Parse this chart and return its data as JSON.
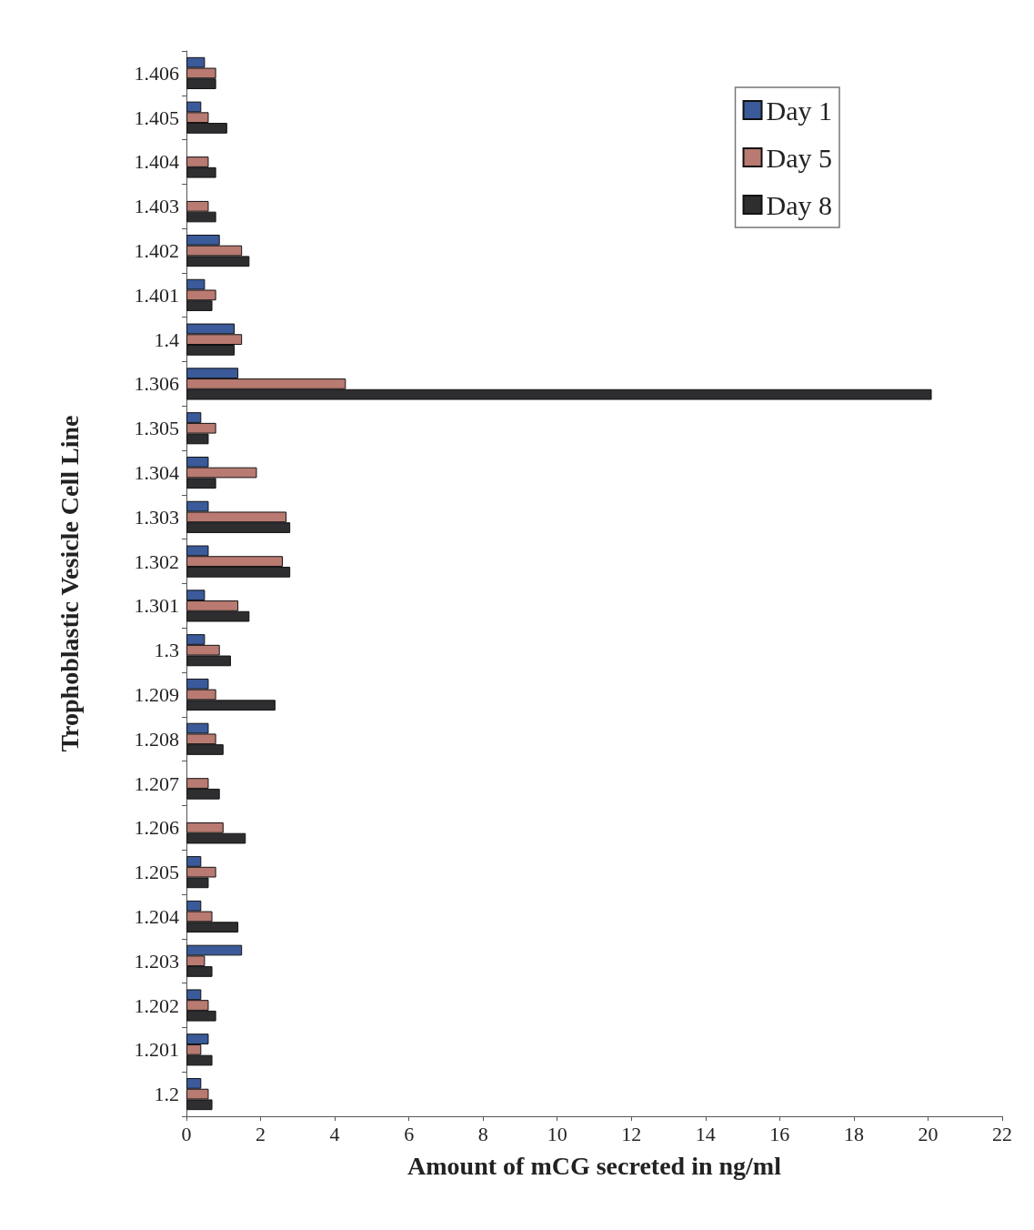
{
  "chart_data": {
    "type": "bar",
    "orientation": "horizontal",
    "xlabel": "Amount of mCG secreted in ng/ml",
    "ylabel": "Trophoblastic Vesicle Cell Line",
    "categories": [
      "1.406",
      "1.405",
      "1.404",
      "1.403",
      "1.402",
      "1.401",
      "1.4",
      "1.306",
      "1.305",
      "1.304",
      "1.303",
      "1.302",
      "1.301",
      "1.3",
      "1.209",
      "1.208",
      "1.207",
      "1.206",
      "1.205",
      "1.204",
      "1.203",
      "1.202",
      "1.201",
      "1.2"
    ],
    "series": [
      {
        "name": "Day 1",
        "color": "#3a5a9a",
        "values": [
          0.5,
          0.4,
          null,
          null,
          0.9,
          0.5,
          1.3,
          1.4,
          0.4,
          0.6,
          0.6,
          0.6,
          0.5,
          0.5,
          0.6,
          0.6,
          null,
          null,
          0.4,
          0.4,
          1.5,
          0.4,
          0.6,
          0.4
        ]
      },
      {
        "name": "Day 5",
        "color": "#b97a72",
        "values": [
          0.8,
          0.6,
          0.6,
          0.6,
          1.5,
          0.8,
          1.5,
          4.3,
          0.8,
          1.9,
          2.7,
          2.6,
          1.4,
          0.9,
          0.8,
          0.8,
          0.6,
          1.0,
          0.8,
          0.7,
          0.5,
          0.6,
          0.4,
          0.6
        ]
      },
      {
        "name": "Day 8",
        "color": "#2e2e30",
        "values": [
          0.8,
          1.1,
          0.8,
          0.8,
          1.7,
          0.7,
          1.3,
          20.1,
          0.6,
          0.8,
          2.8,
          2.8,
          1.7,
          1.2,
          2.4,
          1.0,
          0.9,
          1.6,
          0.6,
          1.4,
          0.7,
          0.8,
          0.7,
          0.7
        ]
      }
    ],
    "xlim": [
      0,
      22
    ],
    "xticks": [
      0,
      2,
      4,
      6,
      8,
      10,
      12,
      14,
      16,
      18,
      20,
      22
    ],
    "grid": false,
    "legend": "top right"
  }
}
